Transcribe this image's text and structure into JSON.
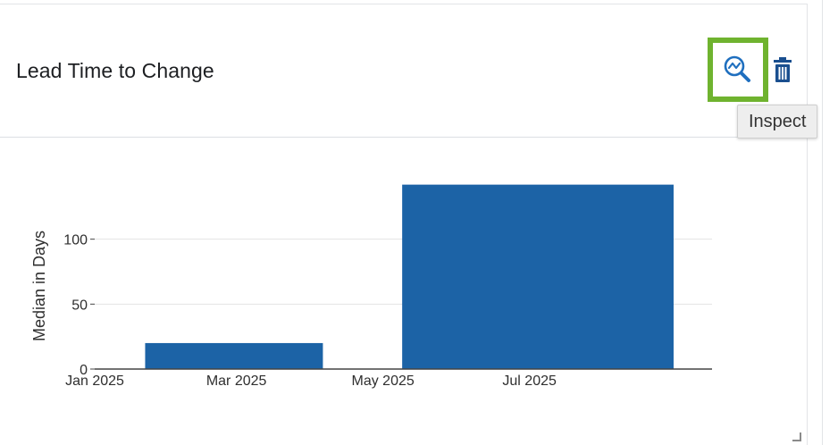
{
  "panel": {
    "title": "Lead Time to Change",
    "inspect_tooltip": "Inspect",
    "icons": {
      "inspect": "inspect-chart-magnifier-icon",
      "delete": "trash-icon",
      "resize": "resize-corner-icon"
    },
    "colors": {
      "accent": "#1f6fbf",
      "bar": "#1c63a6",
      "highlight": "#6fb32f",
      "delete_icon": "#1a4f8f"
    }
  },
  "chart_data": {
    "type": "bar",
    "title": "",
    "xlabel": "",
    "ylabel": "Median in Days",
    "x_ticks": [
      "Jan 2025",
      "Mar 2025",
      "May 2025",
      "Jul 2025"
    ],
    "x_tick_dates": [
      "2025-01-01",
      "2025-03-01",
      "2025-05-01",
      "2025-07-01"
    ],
    "y_ticks": [
      0,
      50,
      100
    ],
    "xlim": [
      "2025-01-01",
      "2025-09-15"
    ],
    "ylim": [
      0,
      150
    ],
    "grid": true,
    "bars": [
      {
        "start": "2025-01-22",
        "end": "2025-04-06",
        "value": 20
      },
      {
        "start": "2025-05-09",
        "end": "2025-08-30",
        "value": 142
      }
    ]
  }
}
